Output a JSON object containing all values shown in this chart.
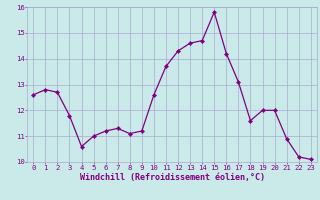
{
  "x": [
    0,
    1,
    2,
    3,
    4,
    5,
    6,
    7,
    8,
    9,
    10,
    11,
    12,
    13,
    14,
    15,
    16,
    17,
    18,
    19,
    20,
    21,
    22,
    23
  ],
  "y": [
    12.6,
    12.8,
    12.7,
    11.8,
    10.6,
    11.0,
    11.2,
    11.3,
    11.1,
    11.2,
    12.6,
    13.7,
    14.3,
    14.6,
    14.7,
    15.8,
    14.2,
    13.1,
    11.6,
    12.0,
    12.0,
    10.9,
    10.2,
    10.1
  ],
  "line_color": "#800080",
  "marker": "D",
  "marker_size": 2.2,
  "bg_color": "#caeaea",
  "grid_color": "#aaaacc",
  "ylim": [
    10,
    16
  ],
  "xlim": [
    -0.5,
    23.5
  ],
  "yticks": [
    10,
    11,
    12,
    13,
    14,
    15,
    16
  ],
  "xticks": [
    0,
    1,
    2,
    3,
    4,
    5,
    6,
    7,
    8,
    9,
    10,
    11,
    12,
    13,
    14,
    15,
    16,
    17,
    18,
    19,
    20,
    21,
    22,
    23
  ],
  "tick_color": "#800080",
  "label_color": "#800080",
  "tick_fontsize": 5.2,
  "xlabel_fontsize": 6.0,
  "xlabel": "Windchill (Refroidissement éolien,°C)"
}
